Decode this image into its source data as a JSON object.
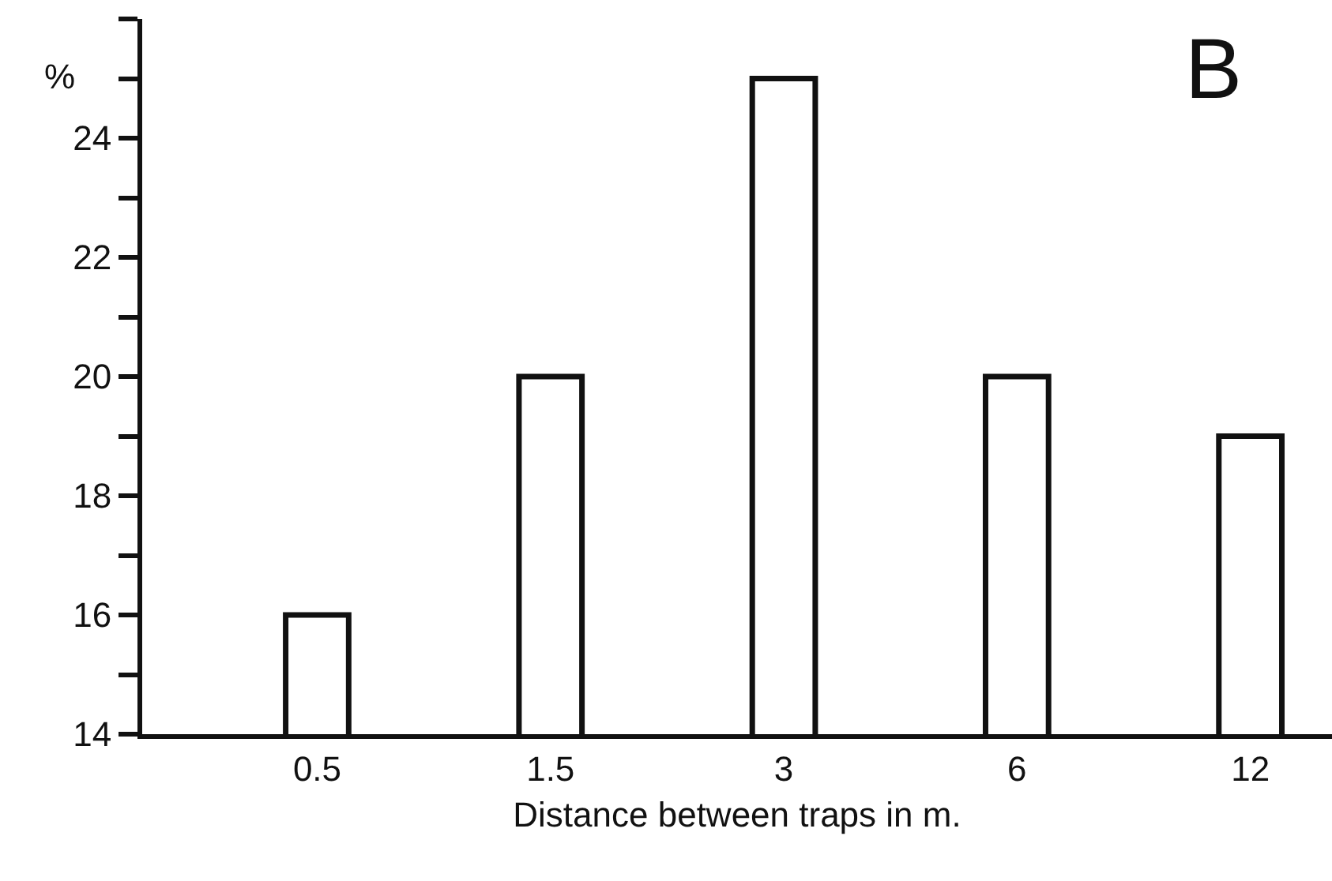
{
  "chart_data": {
    "type": "bar",
    "xlabel": "Distance between traps in m.",
    "ylabel": "%",
    "annotations": [
      "B"
    ],
    "categories": [
      "0.5",
      "1.5",
      "3",
      "6",
      "12"
    ],
    "values": [
      16,
      20,
      25,
      20,
      19
    ],
    "color": "#ffffff",
    "ylim": [
      14,
      26
    ],
    "yticks": [
      14,
      {
        "value": 15,
        "label": null
      },
      16,
      {
        "value": 17,
        "label": null
      },
      18,
      {
        "value": 19,
        "label": null
      },
      20,
      {
        "value": 21,
        "label": null
      },
      22,
      {
        "value": 23,
        "label": null
      },
      24,
      {
        "value": 25,
        "label": null
      },
      {
        "value": 26,
        "label": null
      }
    ]
  }
}
